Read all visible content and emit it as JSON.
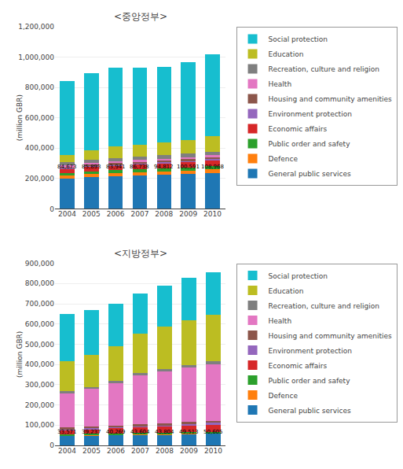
{
  "chart_data": [
    {
      "type": "bar",
      "stacked": true,
      "grid": true,
      "legend": "right",
      "title": "<중앙정부>",
      "y_label": "(million GBR)",
      "categories": [
        "2004",
        "2005",
        "2006",
        "2007",
        "2008",
        "2009",
        "2010"
      ],
      "series": [
        {
          "name": "General public services",
          "values": [
            200000,
            210000,
            215000,
            220000,
            225000,
            230000,
            237000
          ]
        },
        {
          "name": "Defence",
          "values": [
            20000,
            21000,
            22000,
            22500,
            23000,
            23500,
            24000
          ]
        },
        {
          "name": "Public order and safety",
          "values": [
            15000,
            16000,
            17000,
            17500,
            18000,
            18500,
            19000
          ]
        },
        {
          "name": "Economic affairs",
          "values": [
            28000,
            30000,
            32000,
            33000,
            35000,
            37000,
            40000
          ]
        },
        {
          "name": "Environment protection",
          "values": [
            5000,
            5500,
            6000,
            6200,
            6500,
            6800,
            7000
          ]
        },
        {
          "name": "Housing and community amenities",
          "values": [
            8000,
            9000,
            9500,
            10000,
            10500,
            11000,
            12000
          ]
        },
        {
          "name": "Health",
          "values": [
            10000,
            11000,
            12000,
            12500,
            13000,
            13500,
            14000
          ]
        },
        {
          "name": "Recreation, culture and religion",
          "values": [
            20000,
            21000,
            22000,
            22500,
            23000,
            23500,
            24000
          ]
        },
        {
          "name": "Education",
          "values": [
            50000,
            62000,
            74000,
            80000,
            85000,
            90000,
            100000
          ]
        },
        {
          "name": "Social protection",
          "values": [
            484000,
            509500,
            520500,
            506300,
            496000,
            510700,
            543000
          ]
        }
      ],
      "ylim": [
        0,
        1200000
      ],
      "yticks": [
        0,
        {
          "value": 200000,
          "label": "200,000"
        },
        {
          "value": 400000,
          "label": "400,000"
        },
        {
          "value": 600000,
          "label": "600,000"
        },
        {
          "value": 800000,
          "label": "800,000"
        },
        {
          "value": 1000000,
          "label": "1,000,000"
        },
        {
          "value": 1200000,
          "label": "1,200,000"
        }
      ],
      "annotations": [
        {
          "x": "2004",
          "y": 310000,
          "text": "84,673"
        },
        {
          "x": "2005",
          "y": 310000,
          "text": "85,893"
        },
        {
          "x": "2006",
          "y": 310000,
          "text": "83,941"
        },
        {
          "x": "2007",
          "y": 310000,
          "text": "86,738"
        },
        {
          "x": "2008",
          "y": 310000,
          "text": "94,812"
        },
        {
          "x": "2009",
          "y": 310000,
          "text": "100,591"
        },
        {
          "x": "2010",
          "y": 310000,
          "text": "108,968"
        }
      ]
    },
    {
      "type": "bar",
      "stacked": true,
      "grid": true,
      "legend": "right",
      "title": "<지방정부>",
      "y_label": "(million GBR)",
      "categories": [
        "2004",
        "2005",
        "2006",
        "2007",
        "2008",
        "2009",
        "2010"
      ],
      "series": [
        {
          "name": "General public services",
          "values": [
            50000,
            52000,
            53000,
            55000,
            56000,
            58000,
            60000
          ]
        },
        {
          "name": "Defence",
          "values": [
            2000,
            2200,
            2400,
            2500,
            2600,
            2700,
            2800
          ]
        },
        {
          "name": "Public order and safety",
          "values": [
            3000,
            3200,
            3400,
            3600,
            3800,
            4000,
            4200
          ]
        },
        {
          "name": "Economic affairs",
          "values": [
            20000,
            22000,
            25000,
            28000,
            30000,
            33000,
            36000
          ]
        },
        {
          "name": "Environment protection",
          "values": [
            8000,
            8500,
            9000,
            9500,
            10000,
            10500,
            11000
          ]
        },
        {
          "name": "Housing and community amenities",
          "values": [
            5000,
            5500,
            6000,
            6500,
            7000,
            7500,
            8000
          ]
        },
        {
          "name": "Health",
          "values": [
            170000,
            185000,
            210000,
            240000,
            255000,
            270000,
            280000
          ]
        },
        {
          "name": "Recreation, culture and religion",
          "values": [
            10000,
            10500,
            11000,
            11500,
            12000,
            12500,
            13000
          ]
        },
        {
          "name": "Education",
          "values": [
            150000,
            160000,
            170000,
            195000,
            210000,
            220000,
            230000
          ]
        },
        {
          "name": "Social protection",
          "values": [
            230000,
            220000,
            210000,
            200000,
            202000,
            210000,
            212000
          ]
        }
      ],
      "ylim": [
        0,
        900000
      ],
      "yticks": [
        0,
        {
          "value": 100000,
          "label": "100,000"
        },
        {
          "value": 200000,
          "label": "200,000"
        },
        {
          "value": 300000,
          "label": "300,000"
        },
        {
          "value": 400000,
          "label": "400,000"
        },
        {
          "value": 500000,
          "label": "500,000"
        },
        {
          "value": 600000,
          "label": "600,000"
        },
        {
          "value": 700000,
          "label": "700,000"
        },
        {
          "value": 800000,
          "label": "800,000"
        },
        {
          "value": 900000,
          "label": "900,000"
        }
      ],
      "annotations": [
        {
          "x": "2004",
          "y": 90000,
          "text": "33,571"
        },
        {
          "x": "2005",
          "y": 90000,
          "text": "39,237"
        },
        {
          "x": "2006",
          "y": 90000,
          "text": "40,269"
        },
        {
          "x": "2007",
          "y": 90000,
          "text": "43,604"
        },
        {
          "x": "2008",
          "y": 90000,
          "text": "43,804"
        },
        {
          "x": "2009",
          "y": 90000,
          "text": "49,513"
        },
        {
          "x": "2010",
          "y": 90000,
          "text": "50,605"
        }
      ]
    }
  ]
}
